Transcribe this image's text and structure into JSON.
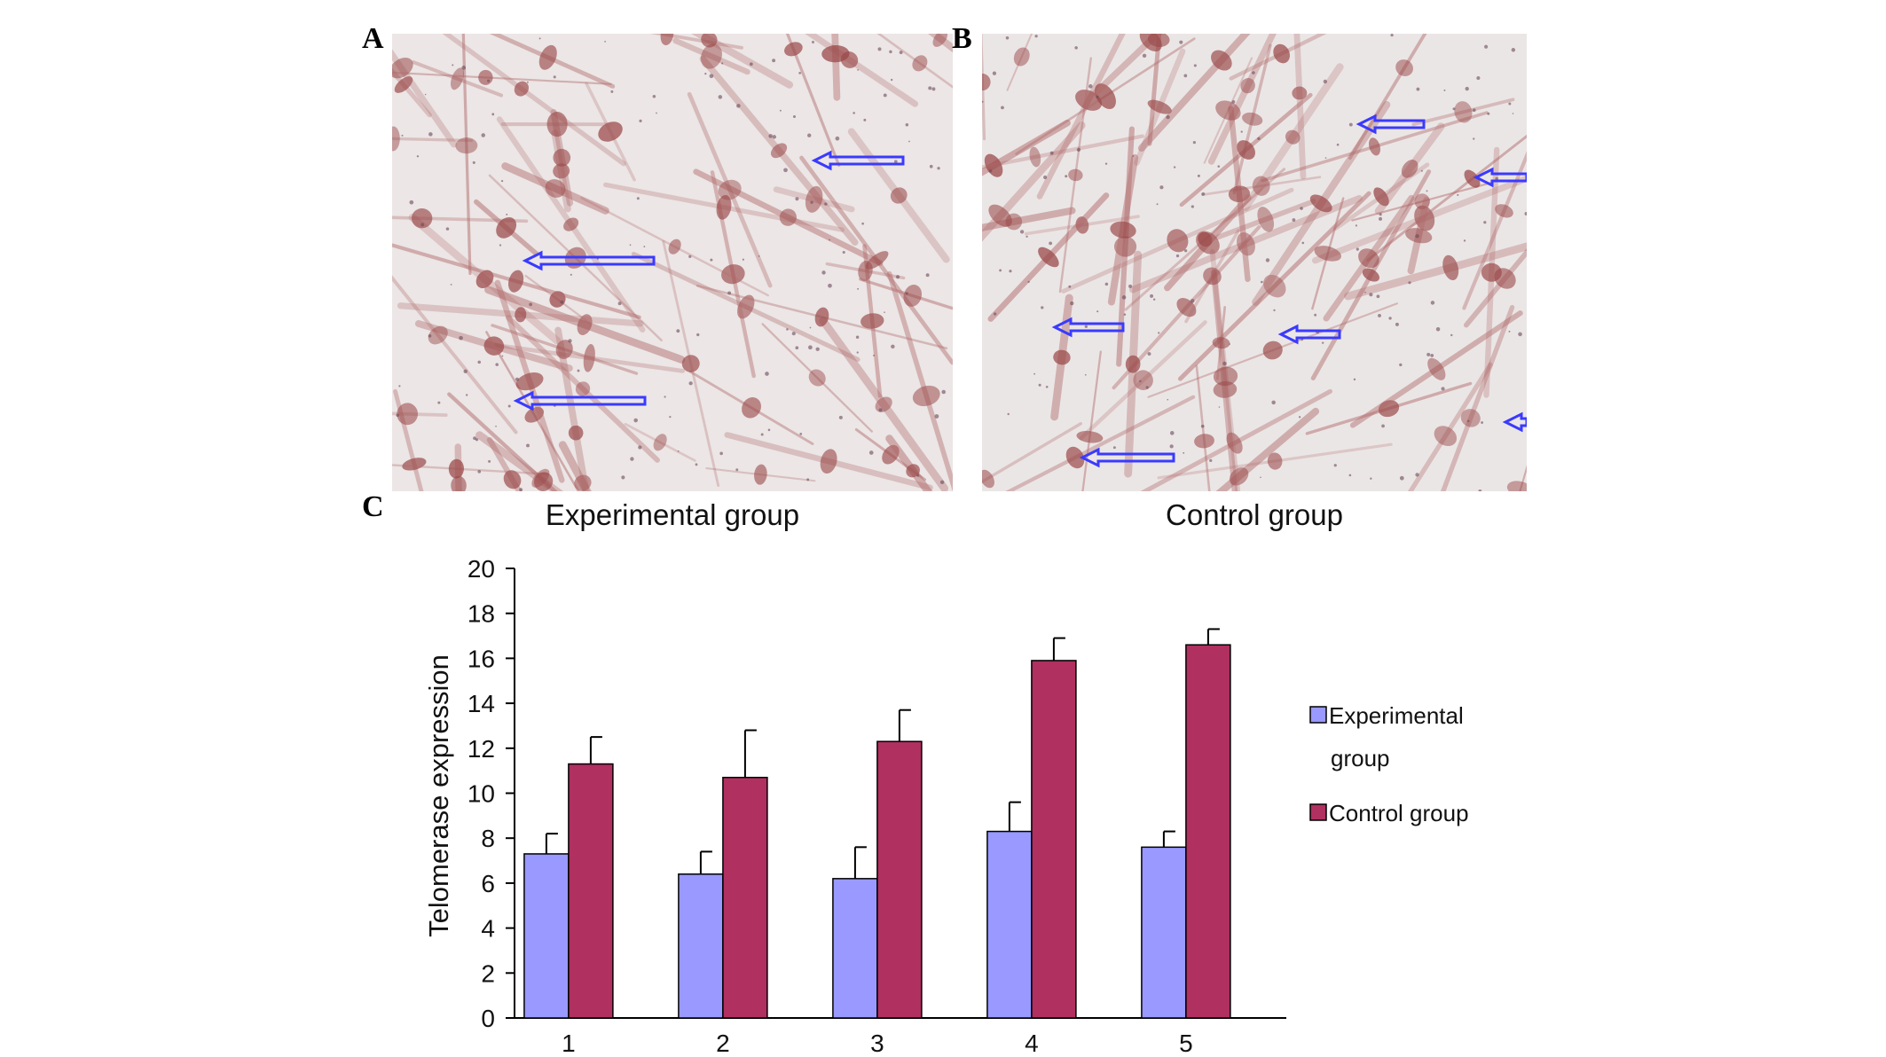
{
  "panels": {
    "a": {
      "letter": "A",
      "caption": "Experimental group"
    },
    "b": {
      "letter": "B",
      "caption": "Control group"
    },
    "c": {
      "letter": "C"
    }
  },
  "colors": {
    "experimental": "#9999ff",
    "control": "#b03060",
    "arrow": "#3a3aff",
    "stain": "#b06a6a"
  },
  "chart_data": {
    "type": "bar",
    "categories": [
      "1",
      "2",
      "3",
      "4",
      "5"
    ],
    "series": [
      {
        "name": "Experimental group",
        "values": [
          7.3,
          6.4,
          6.2,
          8.3,
          7.6
        ],
        "errors": [
          0.9,
          1.0,
          1.4,
          1.3,
          0.7
        ]
      },
      {
        "name": "Control group",
        "values": [
          11.3,
          10.7,
          12.3,
          15.9,
          16.6
        ],
        "errors": [
          1.2,
          2.1,
          1.4,
          1.0,
          0.7
        ]
      }
    ],
    "ylabel": "Telomerase expression",
    "xlabel": "",
    "ylim": [
      0,
      20
    ],
    "yticks": [
      "0",
      "2",
      "4",
      "6",
      "8",
      "10",
      "12",
      "14",
      "16",
      "18",
      "20"
    ],
    "legend": {
      "placement": "right",
      "entries": [
        {
          "lines": [
            "Experimental",
            "group"
          ]
        },
        {
          "lines": [
            "Control group"
          ]
        }
      ]
    },
    "grid": false
  }
}
